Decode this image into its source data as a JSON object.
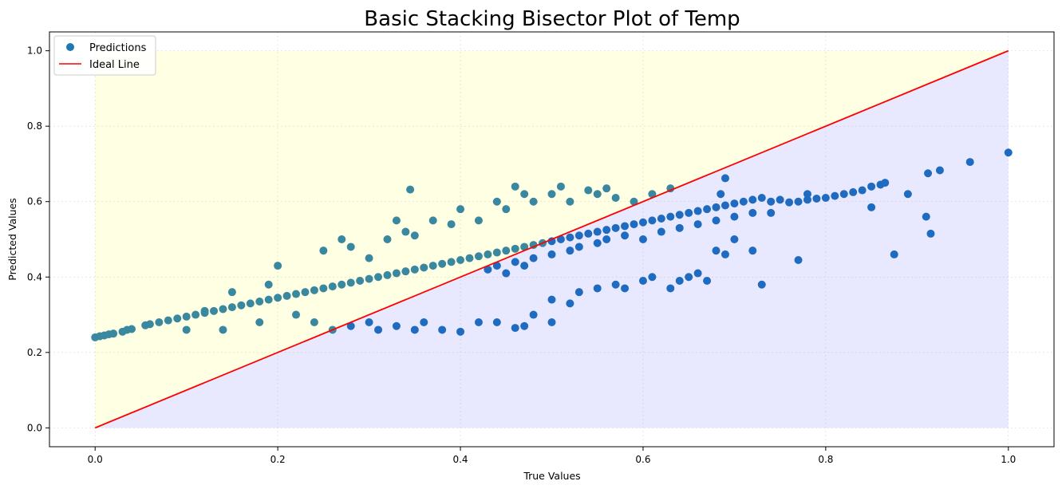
{
  "chart_data": {
    "type": "scatter",
    "title": "Basic Stacking Bisector Plot of Temp",
    "xlabel": "True Values",
    "ylabel": "Predicted Values",
    "xlim": [
      -0.05,
      1.05
    ],
    "ylim": [
      -0.05,
      1.05
    ],
    "xticks": [
      0.0,
      0.2,
      0.4,
      0.6,
      0.8,
      1.0
    ],
    "yticks": [
      0.0,
      0.2,
      0.4,
      0.6,
      0.8,
      1.0
    ],
    "xtick_labels": [
      "0.0",
      "0.2",
      "0.4",
      "0.6",
      "0.8",
      "1.0"
    ],
    "ytick_labels": [
      "0.0",
      "0.2",
      "0.4",
      "0.6",
      "0.8",
      "1.0"
    ],
    "grid": true,
    "legend_position": "top-left",
    "regions": {
      "above_line_color": "#ffffe0",
      "below_line_color": "#e6e6ff"
    },
    "series": [
      {
        "name": "Predictions",
        "kind": "scatter",
        "color": "#1f77b4",
        "above_line_color": "#3a87a0",
        "below_line_color": "#1f6bc0",
        "points": [
          [
            0.0,
            0.24
          ],
          [
            0.005,
            0.243
          ],
          [
            0.01,
            0.245
          ],
          [
            0.015,
            0.248
          ],
          [
            0.02,
            0.25
          ],
          [
            0.03,
            0.255
          ],
          [
            0.035,
            0.26
          ],
          [
            0.04,
            0.262
          ],
          [
            0.055,
            0.272
          ],
          [
            0.06,
            0.275
          ],
          [
            0.07,
            0.28
          ],
          [
            0.08,
            0.285
          ],
          [
            0.09,
            0.29
          ],
          [
            0.1,
            0.295
          ],
          [
            0.11,
            0.3
          ],
          [
            0.12,
            0.305
          ],
          [
            0.13,
            0.31
          ],
          [
            0.14,
            0.315
          ],
          [
            0.15,
            0.32
          ],
          [
            0.16,
            0.325
          ],
          [
            0.17,
            0.33
          ],
          [
            0.18,
            0.335
          ],
          [
            0.19,
            0.34
          ],
          [
            0.2,
            0.345
          ],
          [
            0.21,
            0.35
          ],
          [
            0.22,
            0.355
          ],
          [
            0.23,
            0.36
          ],
          [
            0.24,
            0.365
          ],
          [
            0.25,
            0.37
          ],
          [
            0.26,
            0.375
          ],
          [
            0.27,
            0.38
          ],
          [
            0.28,
            0.385
          ],
          [
            0.29,
            0.39
          ],
          [
            0.3,
            0.395
          ],
          [
            0.31,
            0.4
          ],
          [
            0.32,
            0.405
          ],
          [
            0.33,
            0.41
          ],
          [
            0.34,
            0.415
          ],
          [
            0.35,
            0.42
          ],
          [
            0.36,
            0.425
          ],
          [
            0.37,
            0.43
          ],
          [
            0.38,
            0.435
          ],
          [
            0.39,
            0.44
          ],
          [
            0.4,
            0.445
          ],
          [
            0.41,
            0.45
          ],
          [
            0.42,
            0.455
          ],
          [
            0.43,
            0.46
          ],
          [
            0.44,
            0.465
          ],
          [
            0.45,
            0.47
          ],
          [
            0.46,
            0.475
          ],
          [
            0.47,
            0.48
          ],
          [
            0.48,
            0.485
          ],
          [
            0.49,
            0.49
          ],
          [
            0.5,
            0.495
          ],
          [
            0.51,
            0.5
          ],
          [
            0.52,
            0.505
          ],
          [
            0.53,
            0.51
          ],
          [
            0.54,
            0.515
          ],
          [
            0.55,
            0.52
          ],
          [
            0.56,
            0.525
          ],
          [
            0.57,
            0.53
          ],
          [
            0.58,
            0.535
          ],
          [
            0.59,
            0.54
          ],
          [
            0.6,
            0.545
          ],
          [
            0.61,
            0.55
          ],
          [
            0.62,
            0.555
          ],
          [
            0.63,
            0.56
          ],
          [
            0.64,
            0.565
          ],
          [
            0.65,
            0.57
          ],
          [
            0.66,
            0.575
          ],
          [
            0.67,
            0.58
          ],
          [
            0.68,
            0.585
          ],
          [
            0.69,
            0.59
          ],
          [
            0.7,
            0.595
          ],
          [
            0.71,
            0.6
          ],
          [
            0.72,
            0.605
          ],
          [
            0.73,
            0.61
          ],
          [
            0.74,
            0.6
          ],
          [
            0.75,
            0.605
          ],
          [
            0.76,
            0.598
          ],
          [
            0.77,
            0.6
          ],
          [
            0.78,
            0.605
          ],
          [
            0.79,
            0.608
          ],
          [
            0.8,
            0.61
          ],
          [
            0.81,
            0.615
          ],
          [
            0.82,
            0.62
          ],
          [
            0.83,
            0.625
          ],
          [
            0.84,
            0.63
          ],
          [
            0.85,
            0.64
          ],
          [
            0.86,
            0.645
          ],
          [
            0.865,
            0.65
          ],
          [
            0.3,
            0.45
          ],
          [
            0.32,
            0.5
          ],
          [
            0.33,
            0.55
          ],
          [
            0.34,
            0.52
          ],
          [
            0.35,
            0.51
          ],
          [
            0.37,
            0.55
          ],
          [
            0.39,
            0.54
          ],
          [
            0.4,
            0.58
          ],
          [
            0.42,
            0.55
          ],
          [
            0.44,
            0.6
          ],
          [
            0.45,
            0.58
          ],
          [
            0.46,
            0.64
          ],
          [
            0.47,
            0.62
          ],
          [
            0.48,
            0.6
          ],
          [
            0.5,
            0.62
          ],
          [
            0.51,
            0.64
          ],
          [
            0.52,
            0.6
          ],
          [
            0.54,
            0.63
          ],
          [
            0.55,
            0.62
          ],
          [
            0.56,
            0.635
          ],
          [
            0.57,
            0.61
          ],
          [
            0.59,
            0.6
          ],
          [
            0.61,
            0.62
          ],
          [
            0.63,
            0.635
          ],
          [
            0.345,
            0.632
          ],
          [
            0.27,
            0.5
          ],
          [
            0.28,
            0.48
          ],
          [
            0.25,
            0.47
          ],
          [
            0.2,
            0.43
          ],
          [
            0.19,
            0.38
          ],
          [
            0.15,
            0.36
          ],
          [
            0.12,
            0.31
          ],
          [
            0.1,
            0.26
          ],
          [
            0.14,
            0.26
          ],
          [
            0.18,
            0.28
          ],
          [
            0.22,
            0.3
          ],
          [
            0.24,
            0.28
          ],
          [
            0.26,
            0.26
          ],
          [
            0.28,
            0.27
          ],
          [
            0.3,
            0.28
          ],
          [
            0.31,
            0.26
          ],
          [
            0.33,
            0.27
          ],
          [
            0.35,
            0.26
          ],
          [
            0.36,
            0.28
          ],
          [
            0.38,
            0.26
          ],
          [
            0.4,
            0.255
          ],
          [
            0.42,
            0.28
          ],
          [
            0.44,
            0.28
          ],
          [
            0.46,
            0.265
          ],
          [
            0.47,
            0.27
          ],
          [
            0.48,
            0.3
          ],
          [
            0.5,
            0.28
          ],
          [
            0.5,
            0.34
          ],
          [
            0.52,
            0.33
          ],
          [
            0.53,
            0.36
          ],
          [
            0.55,
            0.37
          ],
          [
            0.57,
            0.38
          ],
          [
            0.58,
            0.37
          ],
          [
            0.6,
            0.39
          ],
          [
            0.61,
            0.4
          ],
          [
            0.63,
            0.37
          ],
          [
            0.64,
            0.39
          ],
          [
            0.65,
            0.4
          ],
          [
            0.67,
            0.39
          ],
          [
            0.66,
            0.41
          ],
          [
            0.68,
            0.47
          ],
          [
            0.69,
            0.46
          ],
          [
            0.7,
            0.5
          ],
          [
            0.72,
            0.47
          ],
          [
            0.73,
            0.38
          ],
          [
            0.77,
            0.445
          ],
          [
            0.85,
            0.585
          ],
          [
            0.875,
            0.46
          ],
          [
            0.89,
            0.62
          ],
          [
            0.91,
            0.56
          ],
          [
            0.915,
            0.515
          ],
          [
            0.912,
            0.675
          ],
          [
            0.925,
            0.683
          ],
          [
            0.958,
            0.705
          ],
          [
            1.0,
            0.73
          ],
          [
            0.69,
            0.662
          ],
          [
            0.685,
            0.62
          ],
          [
            0.78,
            0.62
          ],
          [
            0.43,
            0.42
          ],
          [
            0.44,
            0.43
          ],
          [
            0.45,
            0.41
          ],
          [
            0.46,
            0.44
          ],
          [
            0.47,
            0.43
          ],
          [
            0.48,
            0.45
          ],
          [
            0.5,
            0.46
          ],
          [
            0.52,
            0.47
          ],
          [
            0.53,
            0.48
          ],
          [
            0.55,
            0.49
          ],
          [
            0.56,
            0.5
          ],
          [
            0.58,
            0.51
          ],
          [
            0.6,
            0.5
          ],
          [
            0.62,
            0.52
          ],
          [
            0.64,
            0.53
          ],
          [
            0.66,
            0.54
          ],
          [
            0.68,
            0.55
          ],
          [
            0.7,
            0.56
          ],
          [
            0.72,
            0.57
          ],
          [
            0.74,
            0.57
          ]
        ]
      },
      {
        "name": "Ideal Line",
        "kind": "line",
        "color": "#ff0000",
        "points": [
          [
            0.0,
            0.0
          ],
          [
            1.0,
            1.0
          ]
        ]
      }
    ]
  }
}
